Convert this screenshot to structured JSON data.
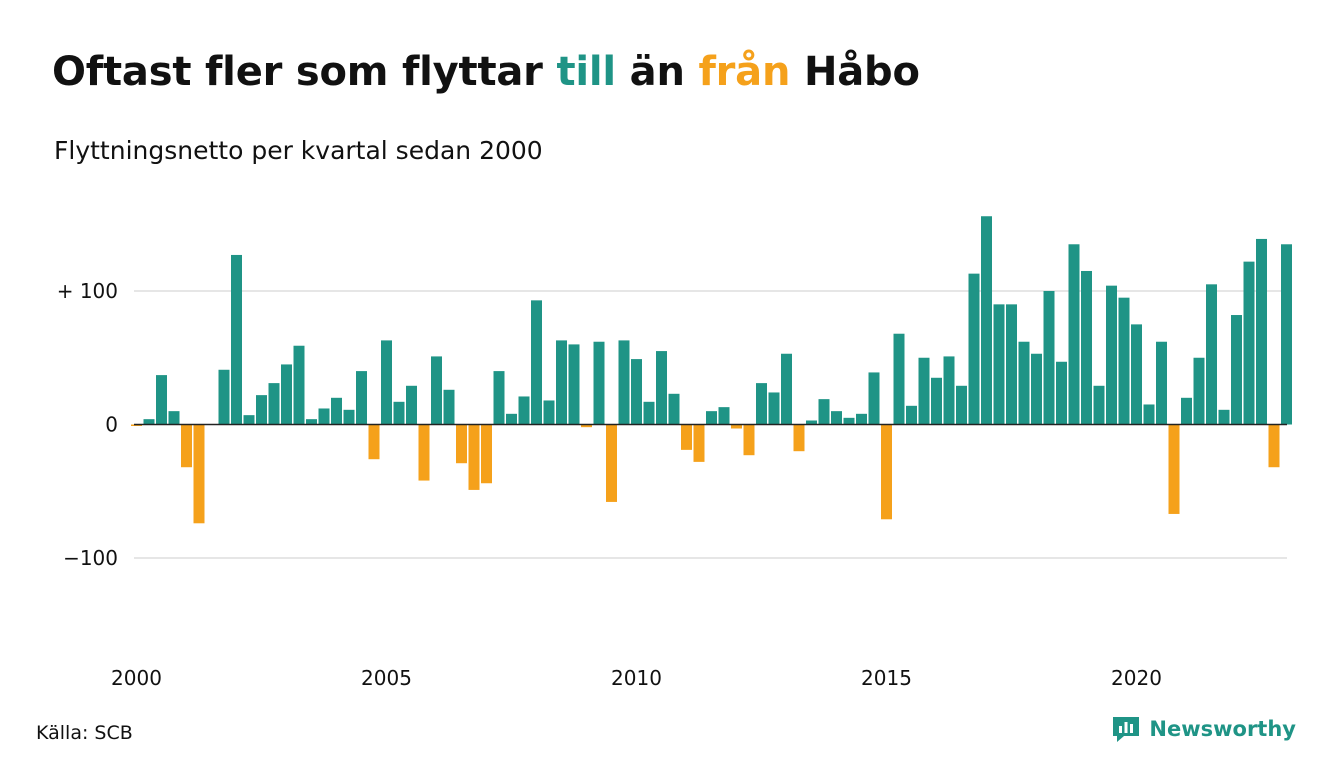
{
  "title": {
    "part1": "Oftast fler som flyttar ",
    "part2": "till",
    "part3": " än ",
    "part4": "från",
    "part5": " Håbo"
  },
  "subtitle": "Flyttningsnetto per kvartal sedan 2000",
  "source": "Källa: SCB",
  "logo": {
    "name": "Newsworthy",
    "icon": "newsworthy-logo-icon"
  },
  "colors": {
    "positive": "#1f9486",
    "negative": "#f5a11b",
    "grid": "#dddddd",
    "axis": "#222222"
  },
  "chart_data": {
    "type": "bar",
    "title": "Oftast fler som flyttar till än från Håbo",
    "subtitle": "Flyttningsnetto per kvartal sedan 2000",
    "xlabel": "",
    "ylabel": "",
    "ylim": [
      -170,
      160
    ],
    "yticks": [
      {
        "value": 100,
        "label": "+ 100"
      },
      {
        "value": 0,
        "label": "0"
      },
      {
        "value": -100,
        "label": "−100"
      }
    ],
    "xticks": [
      {
        "value": "2000",
        "label": "2000"
      },
      {
        "value": "2005",
        "label": "2005"
      },
      {
        "value": "2010",
        "label": "2010"
      },
      {
        "value": "2015",
        "label": "2015"
      },
      {
        "value": "2020",
        "label": "2020"
      }
    ],
    "grid": true,
    "legend": "none",
    "categories": [
      "2000 K1",
      "2000 K2",
      "2000 K3",
      "2000 K4",
      "2001 K1",
      "2001 K2",
      "2001 K3",
      "2001 K4",
      "2002 K1",
      "2002 K2",
      "2002 K3",
      "2002 K4",
      "2003 K1",
      "2003 K2",
      "2003 K3",
      "2003 K4",
      "2004 K1",
      "2004 K2",
      "2004 K3",
      "2004 K4",
      "2005 K1",
      "2005 K2",
      "2005 K3",
      "2005 K4",
      "2006 K1",
      "2006 K2",
      "2006 K3",
      "2006 K4",
      "2007 K1",
      "2007 K2",
      "2007 K3",
      "2007 K4",
      "2008 K1",
      "2008 K2",
      "2008 K3",
      "2008 K4",
      "2009 K1",
      "2009 K2",
      "2009 K3",
      "2009 K4",
      "2010 K1",
      "2010 K2",
      "2010 K3",
      "2010 K4",
      "2011 K1",
      "2011 K2",
      "2011 K3",
      "2011 K4",
      "2012 K1",
      "2012 K2",
      "2012 K3",
      "2012 K4",
      "2013 K1",
      "2013 K2",
      "2013 K3",
      "2013 K4",
      "2014 K1",
      "2014 K2",
      "2014 K3",
      "2014 K4",
      "2015 K1",
      "2015 K2",
      "2015 K3",
      "2015 K4",
      "2016 K1",
      "2016 K2",
      "2016 K3",
      "2016 K4",
      "2017 K1",
      "2017 K2",
      "2017 K3",
      "2017 K4",
      "2018 K1",
      "2018 K2",
      "2018 K3",
      "2018 K4",
      "2019 K1",
      "2019 K2",
      "2019 K3",
      "2019 K4",
      "2020 K1",
      "2020 K2",
      "2020 K3",
      "2020 K4",
      "2021 K1",
      "2021 K2",
      "2021 K3",
      "2021 K4",
      "2022 K1",
      "2022 K2",
      "2022 K3",
      "2022 K4",
      "2023 K1"
    ],
    "values": [
      -1,
      4,
      37,
      10,
      -32,
      -74,
      0,
      41,
      127,
      7,
      22,
      31,
      45,
      59,
      4,
      12,
      20,
      11,
      40,
      -26,
      63,
      17,
      29,
      -42,
      51,
      26,
      -29,
      -49,
      -44,
      40,
      8,
      21,
      93,
      18,
      63,
      60,
      -2,
      62,
      -58,
      63,
      49,
      17,
      55,
      23,
      -19,
      -28,
      10,
      13,
      -3,
      -23,
      31,
      24,
      53,
      -20,
      3,
      19,
      10,
      5,
      8,
      39,
      -71,
      68,
      14,
      50,
      35,
      51,
      29,
      113,
      156,
      90,
      90,
      62,
      53,
      100,
      47,
      135,
      115,
      29,
      104,
      95,
      75,
      15,
      62,
      -67,
      20,
      50,
      105,
      11,
      82,
      122,
      139,
      -32,
      135
    ]
  }
}
